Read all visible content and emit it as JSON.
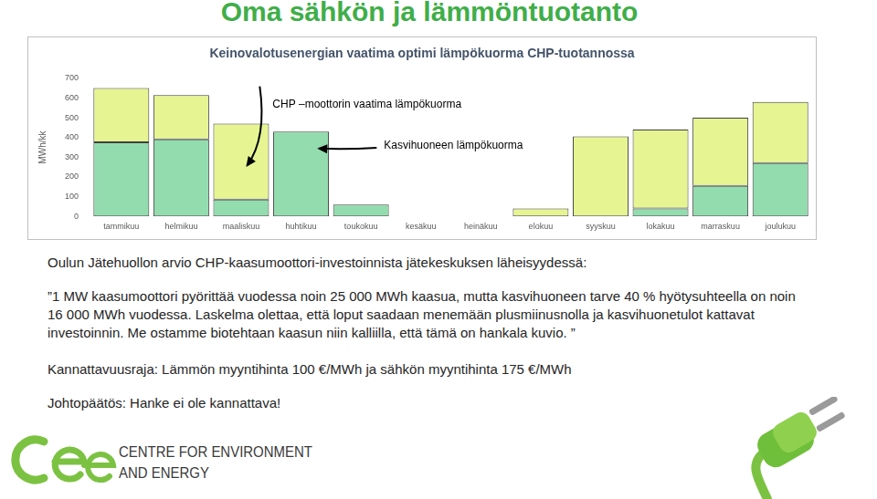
{
  "header": {
    "title": "Oma sähkön ja lämmöntuotanto"
  },
  "chart_data": {
    "type": "bar",
    "title": "Keinovalotusenergian vaatima optimi lämpökuorma CHP-tuotannossa",
    "ylabel": "MWh/kk",
    "categories": [
      "tammikuu",
      "helmikuu",
      "maaliskuu",
      "huhtikuu",
      "toukokuu",
      "kesäkuu",
      "heinäkuu",
      "elokuu",
      "syyskuu",
      "lokakuu",
      "marraskuu",
      "joulukuu"
    ],
    "series": [
      {
        "name": "Kasvihuoneen lämpökuorma",
        "color": "#92dcae",
        "values": [
          375,
          390,
          85,
          430,
          60,
          0,
          0,
          0,
          0,
          40,
          155,
          270
        ]
      },
      {
        "name": "CHP –moottorin vaatima lämpökuorma",
        "color": "#e6f592",
        "values": [
          275,
          225,
          385,
          0,
          0,
          0,
          0,
          40,
          405,
          400,
          345,
          310
        ]
      }
    ],
    "stacked": true,
    "ylim": [
      0,
      700
    ],
    "yticks": [
      0,
      100,
      200,
      300,
      400,
      500,
      600,
      700
    ],
    "grid": false
  },
  "body": {
    "source": "Oulun Jätehuollon arvio CHP-kaasumoottori-investoinnista jätekeskuksen läheisyydessä:",
    "quote": [
      "”1 MW kaasumoottori pyörittää vuodessa noin 25 000 MWh kaasua, mutta kasvihuoneen tarve 40 % hyötysuhteella on noin",
      "16 000 MWh vuodessa. Laskelma olettaa, että loput saadaan menemään plusmiinusnolla ja kasvihuonetulot kattavat",
      "investoinnin. Me ostamme biotehtaan kaasun niin kalliilla, että tämä on hankala kuvio. ”"
    ],
    "threshold": "Kannattavuusraja: Lämmön myyntihinta 100 €/MWh ja sähkön myyntihinta 175 €/MWh",
    "conclusion": "Johtopäätös: Hanke ei ole kannattava!"
  },
  "logo": {
    "lines": [
      "CENTRE FOR ENVIRONMENT",
      "AND ENERGY"
    ]
  }
}
